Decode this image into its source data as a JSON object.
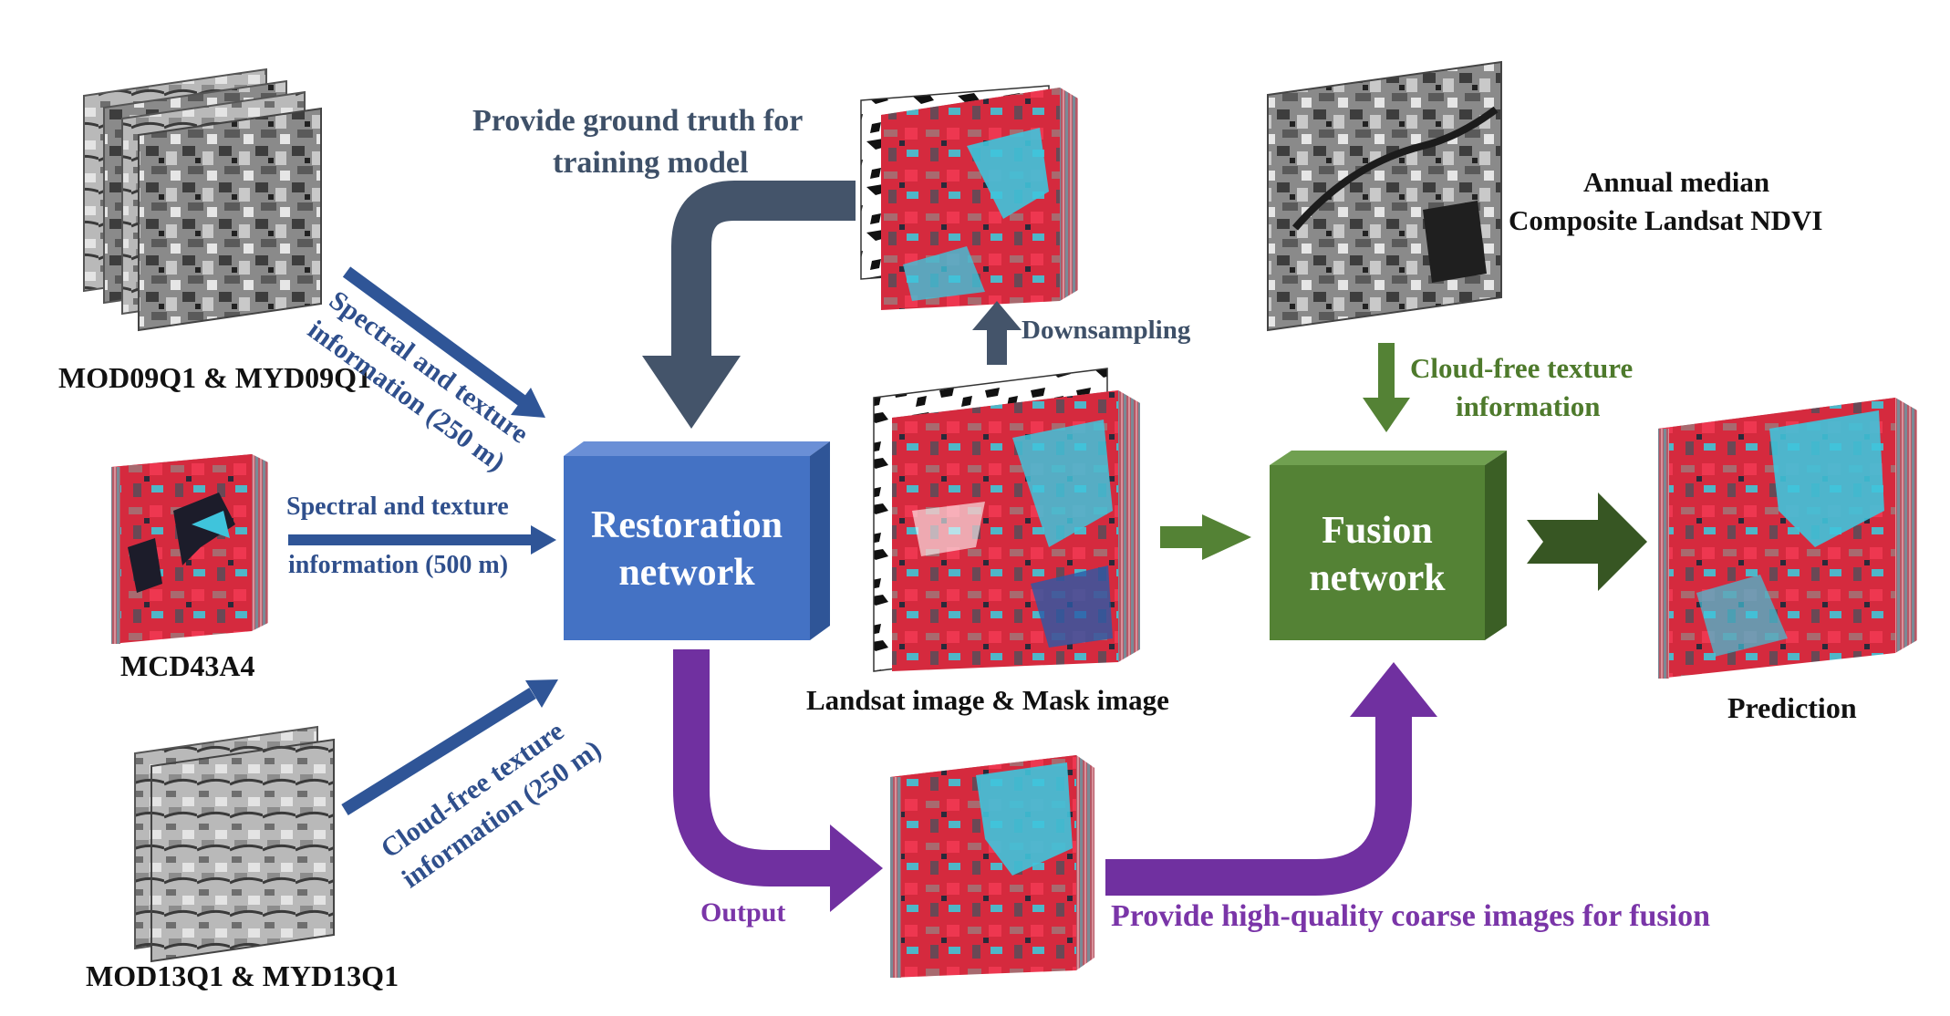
{
  "inputs": {
    "mod09": "MOD09Q1 & MYD09Q1",
    "mcd43": "MCD43A4",
    "mod13": "MOD13Q1 & MYD13Q1"
  },
  "arrow_labels": {
    "spectral_texture_250_l1": "Spectral and texture",
    "spectral_texture_250_l2": "information (250 m)",
    "spectral_texture_500_l1": "Spectral  and  texture",
    "spectral_texture_500_l2": "information  (500 m)",
    "cloudfree_250_l1": "Cloud-free texture",
    "cloudfree_250_l2": "information (250 m)",
    "ground_truth_l1": "Provide ground truth for",
    "ground_truth_l2": "training model",
    "downsampling": "Downsampling",
    "cloudfree_texture_l1": "Cloud-free texture",
    "cloudfree_texture_l2": "information",
    "output": "Output",
    "high_quality": "Provide high-quality coarse images for fusion"
  },
  "boxes": {
    "restoration_l1": "Restoration",
    "restoration_l2": "network",
    "fusion_l1": "Fusion",
    "fusion_l2": "network"
  },
  "images": {
    "landsat_mask": "Landsat image & Mask image",
    "ndvi_l1": "Annual median",
    "ndvi_l2": "Composite Landsat NDVI",
    "prediction": "Prediction"
  },
  "colors": {
    "restoration_box": "#4472c4",
    "fusion_box": "#548235",
    "blue_arrow": "#2f5597",
    "slate_arrow": "#44546a",
    "green_arrow": "#548235",
    "dark_green_arrow": "#375623",
    "purple_arrow": "#7030a0"
  }
}
